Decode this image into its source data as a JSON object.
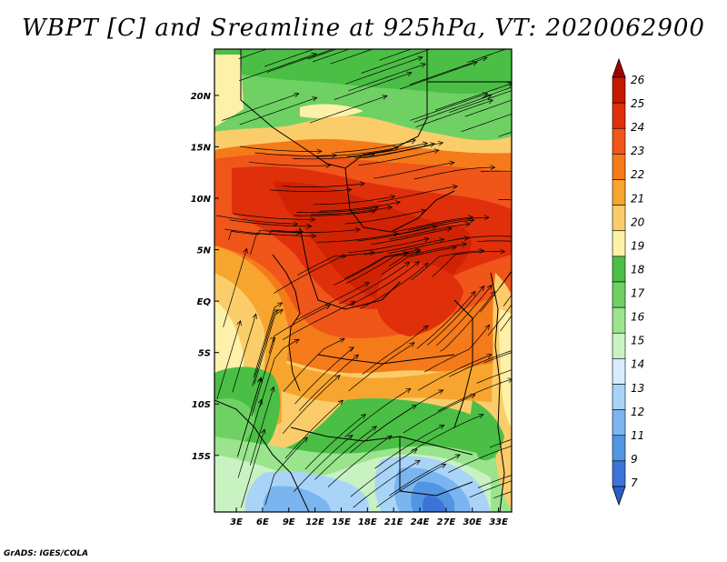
{
  "title": "WBPT [C] and Sreamline at 925hPa, VT: 2020062900",
  "credit": "GrADS: IGES/COLA",
  "map": {
    "variable": "WBPT",
    "units": "C",
    "level": "925hPa",
    "valid_time": "2020062900",
    "lon_labels": [
      "3E",
      "6E",
      "9E",
      "12E",
      "15E",
      "18E",
      "21E",
      "24E",
      "27E",
      "30E",
      "33E"
    ],
    "lon_values": [
      3,
      6,
      9,
      12,
      15,
      18,
      21,
      24,
      27,
      30,
      33
    ],
    "lat_labels": [
      "20N",
      "15N",
      "10N",
      "5N",
      "EQ",
      "5S",
      "10S",
      "15S"
    ],
    "lat_values": [
      20,
      15,
      10,
      5,
      0,
      -5,
      -10,
      -15
    ],
    "lon_range": [
      0.5,
      34.5
    ],
    "lat_range": [
      -20.5,
      24.5
    ]
  },
  "colorbar": {
    "labels": [
      "26",
      "25",
      "24",
      "23",
      "22",
      "21",
      "20",
      "19",
      "18",
      "17",
      "16",
      "15",
      "14",
      "13",
      "12",
      "11",
      "9",
      "7"
    ],
    "colors": [
      "#a50000",
      "#c41a00",
      "#e0300b",
      "#f0551a",
      "#f57a1a",
      "#f7a52e",
      "#fbcd6a",
      "#fdf0a8",
      "#4bbf45",
      "#6fd164",
      "#9ae48e",
      "#c9f2c2",
      "#d8ecfb",
      "#a9d4f7",
      "#7ab5ef",
      "#5295e3",
      "#3b74d6",
      "#2a5fc9"
    ]
  },
  "colors": {
    "background": "#ffffff",
    "streamline": "#000000"
  }
}
